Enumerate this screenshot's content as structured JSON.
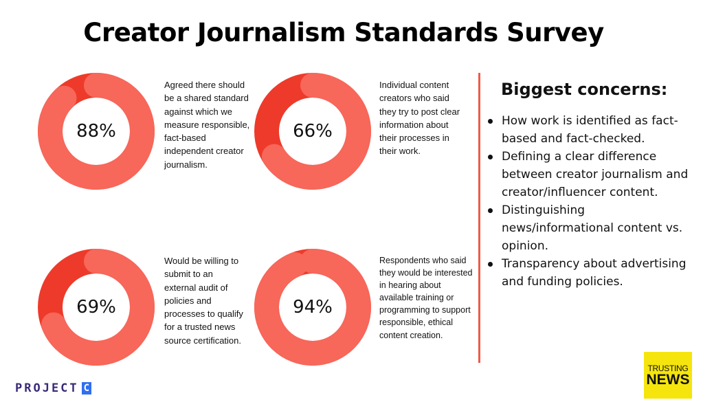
{
  "title": "Creator Journalism Standards Survey",
  "colors": {
    "ring": "#f7675a",
    "highlight": "#ee3a2a",
    "divider": "#f05a48",
    "trusting_news_bg": "#f5e50d"
  },
  "chart_data": [
    {
      "type": "pie",
      "label": "88%",
      "value": 88,
      "description": "Agreed there should be a shared standard against which we measure responsible, fact-based independent creator journalism."
    },
    {
      "type": "pie",
      "label": "66%",
      "value": 66,
      "description": "Individual content creators who said they try to post clear information about their processes in their work."
    },
    {
      "type": "pie",
      "label": "69%",
      "value": 69,
      "description": "Would be willing to submit to an external audit of policies and processes to qualify for a trusted news source certification."
    },
    {
      "type": "pie",
      "label": "94%",
      "value": 94,
      "description": "Respondents who said they would be interested in hearing about available training or programming to support responsible, ethical content creation."
    }
  ],
  "concerns": {
    "title": "Biggest concerns:",
    "items": [
      "How work is identified as fact-based and fact-checked.",
      "Defining a clear difference between creator journalism and creator/influencer content.",
      "Distinguishing news/informational content vs. opinion.",
      "Transparency about advertising and funding policies."
    ]
  },
  "logos": {
    "project_c_text": "PROJECT",
    "project_c_letter": "C",
    "trusting_news_line1": "TRUSTING",
    "trusting_news_line2": "NEWS"
  }
}
